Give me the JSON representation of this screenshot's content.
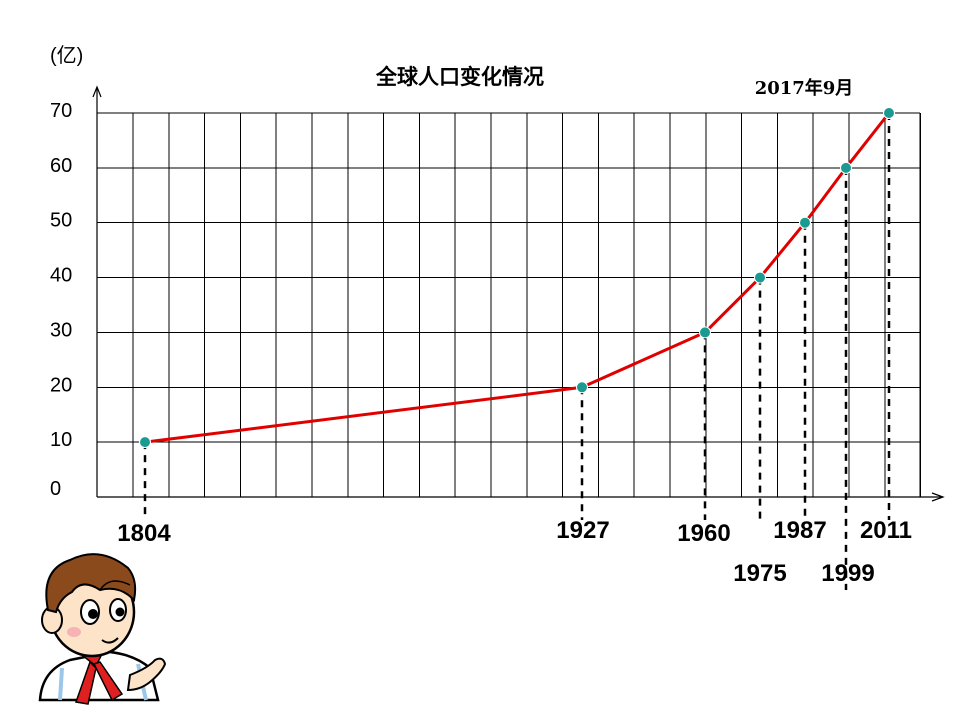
{
  "chart_data": {
    "type": "line",
    "title": "全球人口变化情况",
    "ylabel": "(亿)",
    "annotation": "2017年9月",
    "ylim": [
      0,
      70
    ],
    "y_ticks": [
      "70",
      "60",
      "50",
      "40",
      "30",
      "20",
      "10",
      "0"
    ],
    "x_tick_labels": [
      "1804",
      "1927",
      "1960",
      "1975",
      "1987",
      "1999",
      "2011"
    ],
    "series": [
      {
        "points": [
          {
            "x": 1804,
            "y": 10
          },
          {
            "x": 1927,
            "y": 20
          },
          {
            "x": 1960,
            "y": 30
          },
          {
            "x": 1975,
            "y": 40
          },
          {
            "x": 1987,
            "y": 50
          },
          {
            "x": 1999,
            "y": 60
          },
          {
            "x": 2011,
            "y": 70
          }
        ]
      }
    ],
    "grid": true,
    "colors": {
      "line": "#e00000",
      "marker": "#1a9a90"
    }
  },
  "decoration": {
    "illustration": "cartoon boy in white shirt with red scarf, pointing"
  }
}
